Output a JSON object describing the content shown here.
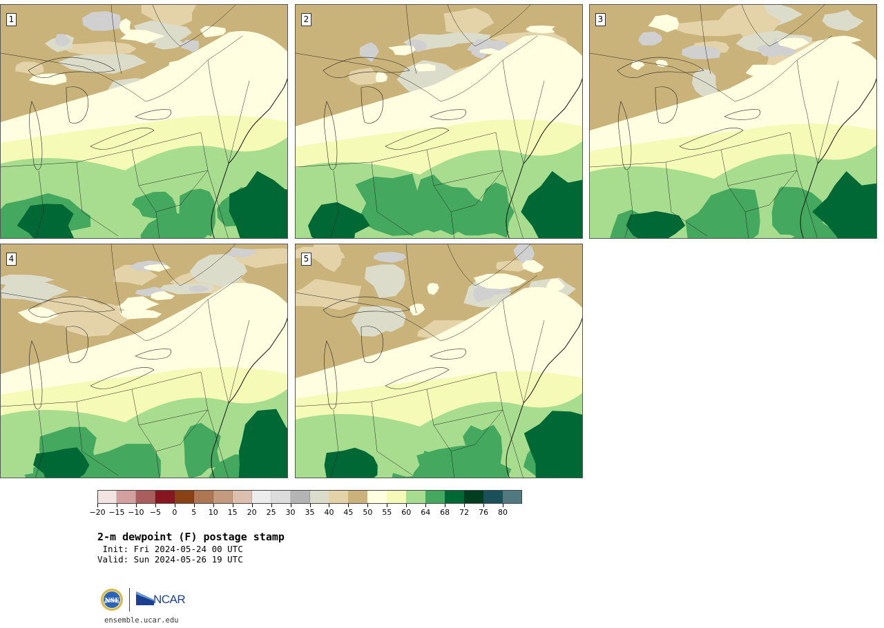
{
  "panels": [
    {
      "number": "1"
    },
    {
      "number": "2"
    },
    {
      "number": "3"
    },
    {
      "number": "4"
    },
    {
      "number": "5"
    }
  ],
  "colorbar": {
    "tick_labels": [
      "−20",
      "−15",
      "−10",
      "−5",
      "0",
      "5",
      "10",
      "15",
      "20",
      "25",
      "30",
      "35",
      "40",
      "45",
      "50",
      "55",
      "60",
      "64",
      "68",
      "72",
      "76",
      "80"
    ],
    "colors": [
      "#f1e4e2",
      "#d3a09f",
      "#a95d5d",
      "#861721",
      "#8a4114",
      "#ae7652",
      "#c49b7f",
      "#ddbfb0",
      "#ececec",
      "#dcdcdc",
      "#b4b4b4",
      "#dcdccb",
      "#e4d3a8",
      "#c9b37a",
      "#fffee0",
      "#f5fbb6",
      "#a8dd8f",
      "#44a95e",
      "#006834",
      "#003d21",
      "#1b5059",
      "#507a80"
    ],
    "color_names": [
      "-20 to -15",
      "-15 to -10",
      "-10 to -5",
      "-5 to 0",
      "0 to 5",
      "5 to 10",
      "10 to 15",
      "15 to 20",
      "20 to 25",
      "25 to 30",
      "30 to 35",
      "35 to 40",
      "40 to 45",
      "45 to 50",
      "50 to 55",
      "55 to 60",
      "60 to 64",
      "64 to 68",
      "68 to 72",
      "72 to 76",
      "76 to 80",
      "80+"
    ]
  },
  "title": {
    "main": "2-m dewpoint (F) postage stamp",
    "init": " Init: Fri 2024-05-24 00 UTC",
    "valid": "Valid: Sun 2024-05-26 19 UTC"
  },
  "logo": {
    "nsf_text": "NSF",
    "ncar_text": "NCAR"
  },
  "website": "ensemble.ucar.edu"
}
